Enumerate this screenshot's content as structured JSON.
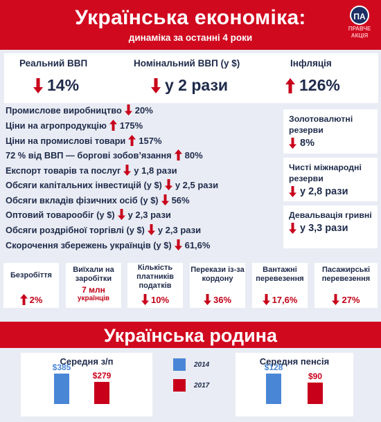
{
  "header": {
    "title": "Українська економіка:",
    "subtitle": "динаміка за останні 4 роки",
    "logo_badge": "ПА",
    "logo_text_1": "ПРАВЧЕ",
    "logo_text_2": "АКЦІЯ"
  },
  "top_stats": [
    {
      "label": "Реальний ВВП",
      "value": "14%",
      "direction": "down"
    },
    {
      "label": "Номінальний ВВП (у $)",
      "value": "у 2 рази",
      "direction": "down"
    },
    {
      "label": "Інфляція",
      "value": "126%",
      "direction": "up"
    }
  ],
  "list": [
    {
      "label": "Промислове виробництво",
      "value": "20%",
      "direction": "down"
    },
    {
      "label": "Ціни на агропродукцію",
      "value": "175%",
      "direction": "up"
    },
    {
      "label": "Ціни на промислові товари",
      "value": "157%",
      "direction": "up"
    },
    {
      "label": "72 % від ВВП — боргові зобов’язання",
      "value": "80%",
      "direction": "up"
    },
    {
      "label": "Експорт товарів та послуг",
      "value": "у 1,8 рази",
      "direction": "down"
    },
    {
      "label": "Обсяги капітальних інвестицій (у $)",
      "value": "у 2,5 рази",
      "direction": "down"
    },
    {
      "label": "Обсяги вкладів фізичних осіб (у $)",
      "value": "56%",
      "direction": "down"
    },
    {
      "label": "Оптовий товарообіг (у $)",
      "value": "у 2,3 рази",
      "direction": "down"
    },
    {
      "label": "Обсяги роздрібної торгівлі (у $)",
      "value": "у 2,3 рази",
      "direction": "down"
    },
    {
      "label": "Скорочення збережень українців (у $)",
      "value": "61,6%",
      "direction": "down"
    }
  ],
  "right_boxes": [
    {
      "label": "Золотовалютні резерви",
      "value": "8%",
      "direction": "down"
    },
    {
      "label": "Чисті міжнародні резерви",
      "value": "у 2,8 рази",
      "direction": "down"
    },
    {
      "label": "Девальвація гривні",
      "value": "у 3,3 рази",
      "direction": "down"
    }
  ],
  "small_boxes": [
    {
      "label": "Безробіття",
      "value": "2%",
      "direction": "up"
    },
    {
      "label": "Виїхали на заробітки",
      "extra": "7 млн",
      "extra2": "українців",
      "value": "",
      "direction": "none"
    },
    {
      "label": "Кількість платників податків",
      "value": "10%",
      "direction": "down"
    },
    {
      "label": "Перекази із-за кордону",
      "value": "36%",
      "direction": "down"
    },
    {
      "label": "Вантажні перевезення",
      "value": "17,6%",
      "direction": "down"
    },
    {
      "label": "Пасажирські перевезення",
      "value": "27%",
      "direction": "down"
    }
  ],
  "family": {
    "title": "Українська родина",
    "legend": [
      {
        "label": "2014",
        "color": "#4a86d6"
      },
      {
        "label": "2017",
        "color": "#c8001a"
      }
    ]
  },
  "chart_data": [
    {
      "type": "bar",
      "title": "Середня з/п",
      "categories": [
        "2014",
        "2017"
      ],
      "values": [
        385,
        279
      ],
      "value_labels": [
        "$385",
        "$279"
      ]
    },
    {
      "type": "bar",
      "title": "Середня пенсія",
      "categories": [
        "2014",
        "2017"
      ],
      "values": [
        128,
        90
      ],
      "value_labels": [
        "$128",
        "$90"
      ]
    }
  ],
  "colors": {
    "red": "#d0091f",
    "dark": "#1e2a4a",
    "blue": "#4a86d6",
    "arrow_red": "#c8001a"
  }
}
